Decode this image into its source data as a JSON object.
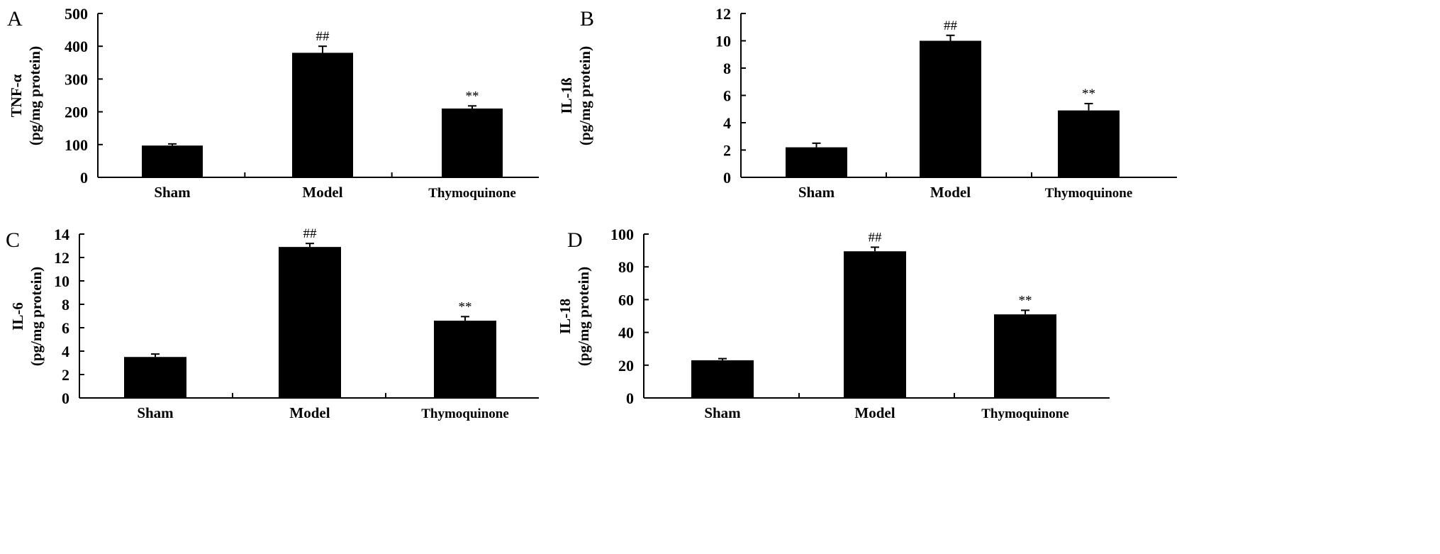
{
  "chart_data": [
    {
      "panel": "A",
      "type": "bar",
      "categories": [
        "Sham",
        "Model",
        "Thymoquinone"
      ],
      "values": [
        97,
        380,
        210
      ],
      "errors": [
        5,
        20,
        8
      ],
      "annotations": [
        "",
        "##",
        "**"
      ],
      "ylabel": [
        "TNF-α",
        "(pg/mg protein)"
      ],
      "ylim": [
        0,
        500
      ],
      "yticks": [
        0,
        100,
        200,
        300,
        400,
        500
      ],
      "grid": false,
      "bar_color": "#000000"
    },
    {
      "panel": "B",
      "type": "bar",
      "categories": [
        "Sham",
        "Model",
        "Thymoquinone"
      ],
      "values": [
        2.2,
        10.0,
        4.9
      ],
      "errors": [
        0.3,
        0.4,
        0.5
      ],
      "annotations": [
        "",
        "##",
        "**"
      ],
      "ylabel": [
        "IL-1ß",
        "(pg/mg protein)"
      ],
      "ylim": [
        0,
        12
      ],
      "yticks": [
        0,
        2,
        4,
        6,
        8,
        10,
        12
      ],
      "grid": false,
      "bar_color": "#000000"
    },
    {
      "panel": "C",
      "type": "bar",
      "categories": [
        "Sham",
        "Model",
        "Thymoquinone"
      ],
      "values": [
        3.5,
        12.9,
        6.6
      ],
      "errors": [
        0.25,
        0.3,
        0.35
      ],
      "annotations": [
        "",
        "##",
        "**"
      ],
      "ylabel": [
        "IL-6",
        "(pg/mg protein)"
      ],
      "ylim": [
        0,
        14
      ],
      "yticks": [
        0,
        2,
        4,
        6,
        8,
        10,
        12,
        14
      ],
      "grid": false,
      "bar_color": "#000000"
    },
    {
      "panel": "D",
      "type": "bar",
      "categories": [
        "Sham",
        "Model",
        "Thymoquinone"
      ],
      "values": [
        23,
        89.5,
        51
      ],
      "errors": [
        1,
        2.5,
        2.5
      ],
      "annotations": [
        "",
        "##",
        "**"
      ],
      "ylabel": [
        "IL-18",
        "(pg/mg protein)"
      ],
      "ylim": [
        0,
        100
      ],
      "yticks": [
        0,
        20,
        40,
        60,
        80,
        100
      ],
      "grid": false,
      "bar_color": "#000000"
    }
  ]
}
